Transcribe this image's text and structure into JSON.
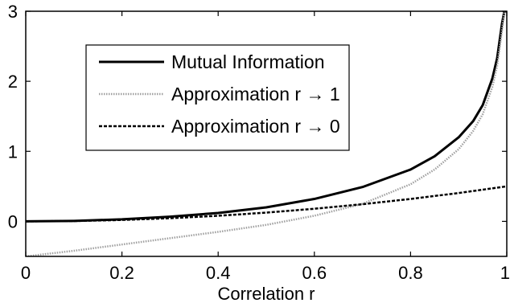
{
  "chart_data": {
    "type": "line",
    "title": "",
    "xlabel": "Correlation r",
    "ylabel": "",
    "xlim": [
      0,
      1
    ],
    "ylim": [
      -0.5,
      3
    ],
    "grid": false,
    "legend_position": "top-left",
    "x_ticks": [
      {
        "value": 0,
        "label": "0"
      },
      {
        "value": 0.2,
        "label": "0.2"
      },
      {
        "value": 0.4,
        "label": "0.4"
      },
      {
        "value": 0.6,
        "label": "0.6"
      },
      {
        "value": 0.8,
        "label": "0.8"
      },
      {
        "value": 1,
        "label": "1"
      }
    ],
    "y_ticks": [
      {
        "value": 0,
        "label": "0"
      },
      {
        "value": 1,
        "label": "1"
      },
      {
        "value": 2,
        "label": "2"
      },
      {
        "value": 3,
        "label": "3"
      }
    ],
    "series": [
      {
        "name": "Mutual Information",
        "color": "#000000",
        "style": "solid",
        "x": [
          0,
          0.1,
          0.2,
          0.3,
          0.4,
          0.5,
          0.6,
          0.7,
          0.8,
          0.85,
          0.9,
          0.93,
          0.95,
          0.97,
          0.98,
          0.99,
          0.995,
          0.998,
          1
        ],
        "y": [
          0,
          0.007,
          0.029,
          0.067,
          0.12,
          0.2,
          0.32,
          0.49,
          0.74,
          0.93,
          1.2,
          1.43,
          1.66,
          2.04,
          2.33,
          2.82,
          3,
          3,
          3
        ]
      },
      {
        "name": "Approximation r → 1",
        "color": "#a0a0a0",
        "style": "dotted",
        "x": [
          0,
          0.1,
          0.2,
          0.3,
          0.4,
          0.5,
          0.6,
          0.7,
          0.8,
          0.85,
          0.9,
          0.93,
          0.95,
          0.97,
          0.98,
          0.99,
          0.995,
          0.998,
          1
        ],
        "y": [
          -0.5,
          -0.42,
          -0.33,
          -0.24,
          -0.15,
          -0.05,
          0.08,
          0.25,
          0.53,
          0.74,
          1.03,
          1.29,
          1.53,
          1.92,
          2.22,
          2.72,
          3,
          3,
          3
        ]
      },
      {
        "name": "Approximation r → 0",
        "color": "#000000",
        "style": "dashed",
        "x": [
          0,
          0.1,
          0.2,
          0.3,
          0.4,
          0.5,
          0.6,
          0.7,
          0.8,
          0.9,
          1
        ],
        "y": [
          0,
          0.005,
          0.02,
          0.045,
          0.08,
          0.125,
          0.18,
          0.245,
          0.32,
          0.405,
          0.5
        ]
      }
    ]
  }
}
